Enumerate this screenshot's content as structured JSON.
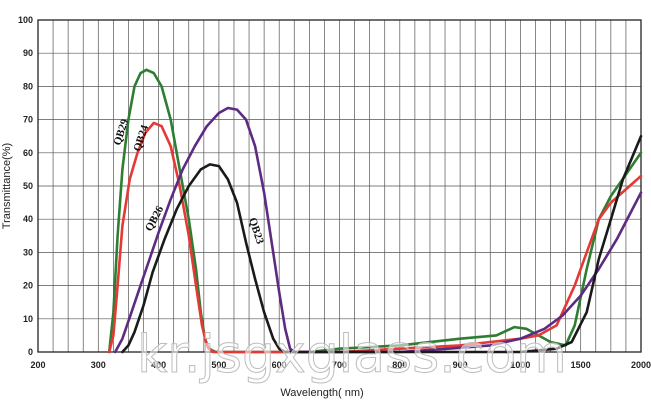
{
  "chart_data": {
    "type": "line",
    "xlabel": "Wavelength( nm)",
    "ylabel": "Transmittance(%)",
    "ylim": [
      0,
      100
    ],
    "x_ticks": [
      "200",
      "300",
      "400",
      "500",
      "600",
      "700",
      "800",
      "900",
      "1000",
      "1500",
      "2000"
    ],
    "x_positions": [
      200,
      300,
      400,
      500,
      600,
      700,
      800,
      900,
      1000,
      1100,
      1200
    ],
    "y_ticks": [
      "0",
      "10",
      "20",
      "30",
      "40",
      "50",
      "60",
      "70",
      "80",
      "90",
      "100"
    ],
    "grid": true,
    "series": [
      {
        "name": "QB29",
        "color": "#2e7d32",
        "points": [
          [
            318,
            0
          ],
          [
            325,
            12
          ],
          [
            332,
            35
          ],
          [
            340,
            55
          ],
          [
            350,
            70
          ],
          [
            360,
            80
          ],
          [
            370,
            84
          ],
          [
            380,
            85
          ],
          [
            392,
            84
          ],
          [
            405,
            80
          ],
          [
            420,
            70
          ],
          [
            435,
            55
          ],
          [
            450,
            40
          ],
          [
            462,
            25
          ],
          [
            470,
            12
          ],
          [
            477,
            4
          ],
          [
            483,
            1
          ],
          [
            495,
            0
          ],
          [
            600,
            0
          ],
          [
            650,
            0
          ],
          [
            700,
            1
          ],
          [
            800,
            2
          ],
          [
            900,
            4
          ],
          [
            960,
            5
          ],
          [
            990,
            7.5
          ],
          [
            1010,
            7
          ],
          [
            1030,
            5
          ],
          [
            1050,
            3
          ],
          [
            1075,
            2
          ],
          [
            1090,
            8
          ],
          [
            1110,
            25
          ],
          [
            1130,
            40
          ],
          [
            1150,
            47
          ],
          [
            1200,
            60
          ]
        ]
      },
      {
        "name": "QB24",
        "color": "#e53935",
        "points": [
          [
            318,
            0
          ],
          [
            325,
            5
          ],
          [
            332,
            20
          ],
          [
            340,
            38
          ],
          [
            352,
            52
          ],
          [
            365,
            60
          ],
          [
            378,
            66
          ],
          [
            392,
            69
          ],
          [
            405,
            68
          ],
          [
            420,
            62
          ],
          [
            435,
            50
          ],
          [
            450,
            35
          ],
          [
            462,
            20
          ],
          [
            472,
            8
          ],
          [
            480,
            2
          ],
          [
            490,
            0
          ],
          [
            600,
            0
          ],
          [
            700,
            0
          ],
          [
            800,
            1
          ],
          [
            900,
            2
          ],
          [
            950,
            3
          ],
          [
            1000,
            4
          ],
          [
            1030,
            5
          ],
          [
            1060,
            8
          ],
          [
            1090,
            20
          ],
          [
            1110,
            30
          ],
          [
            1130,
            40
          ],
          [
            1150,
            45
          ],
          [
            1200,
            53
          ]
        ]
      },
      {
        "name": "QB26",
        "color": "#5e2a82",
        "points": [
          [
            328,
            0
          ],
          [
            340,
            4
          ],
          [
            355,
            12
          ],
          [
            370,
            20
          ],
          [
            385,
            28
          ],
          [
            400,
            36
          ],
          [
            420,
            46
          ],
          [
            440,
            55
          ],
          [
            460,
            62
          ],
          [
            480,
            68
          ],
          [
            500,
            72
          ],
          [
            515,
            73.5
          ],
          [
            530,
            73
          ],
          [
            545,
            70
          ],
          [
            560,
            62
          ],
          [
            575,
            48
          ],
          [
            590,
            30
          ],
          [
            600,
            18
          ],
          [
            610,
            7
          ],
          [
            618,
            1
          ],
          [
            625,
            0
          ],
          [
            650,
            0
          ],
          [
            700,
            0
          ],
          [
            800,
            0
          ],
          [
            880,
            1
          ],
          [
            950,
            2
          ],
          [
            1000,
            4
          ],
          [
            1040,
            7
          ],
          [
            1070,
            11
          ],
          [
            1100,
            17
          ],
          [
            1130,
            25
          ],
          [
            1160,
            34
          ],
          [
            1200,
            48
          ]
        ]
      },
      {
        "name": "QB23",
        "color": "#1a1a1a",
        "points": [
          [
            340,
            0
          ],
          [
            350,
            2
          ],
          [
            360,
            6
          ],
          [
            375,
            14
          ],
          [
            390,
            24
          ],
          [
            410,
            34
          ],
          [
            430,
            43
          ],
          [
            450,
            50
          ],
          [
            470,
            55
          ],
          [
            485,
            56.5
          ],
          [
            500,
            56
          ],
          [
            515,
            52
          ],
          [
            530,
            45
          ],
          [
            545,
            33
          ],
          [
            560,
            22
          ],
          [
            575,
            12
          ],
          [
            590,
            4
          ],
          [
            600,
            1
          ],
          [
            610,
            0
          ],
          [
            700,
            0
          ],
          [
            800,
            0
          ],
          [
            900,
            0
          ],
          [
            1000,
            0
          ],
          [
            1060,
            1
          ],
          [
            1085,
            3
          ],
          [
            1110,
            12
          ],
          [
            1130,
            28
          ],
          [
            1150,
            40
          ],
          [
            1170,
            52
          ],
          [
            1200,
            65
          ]
        ]
      }
    ],
    "annotations": [
      "QB29",
      "QB24",
      "QB26",
      "QB23"
    ]
  },
  "watermark": "kr.jsgxglass.com"
}
